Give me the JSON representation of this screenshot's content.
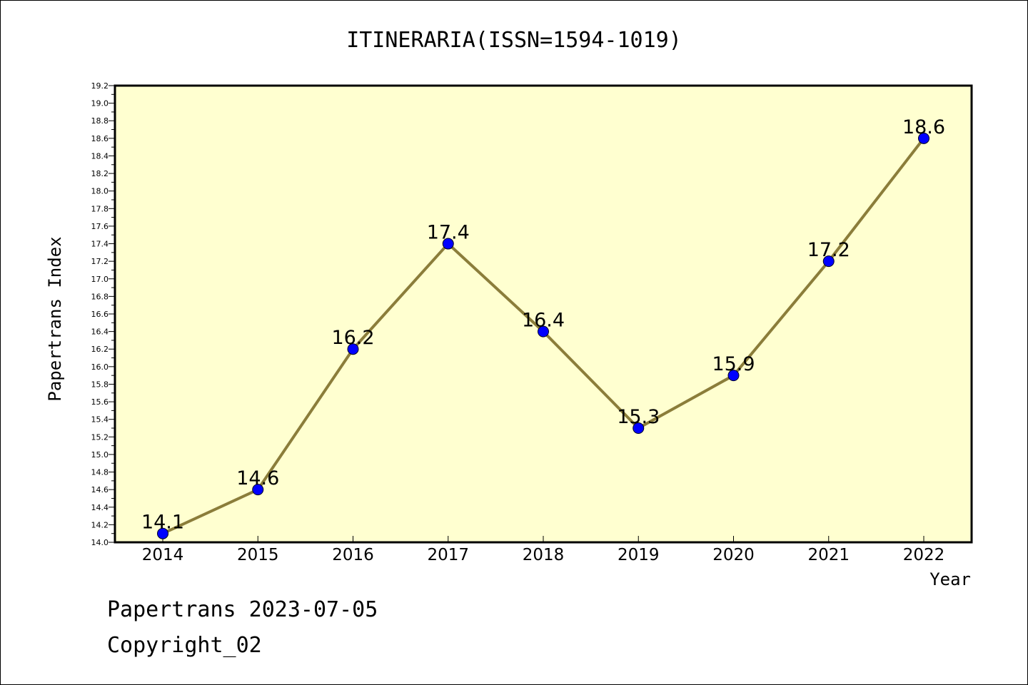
{
  "chart_data": {
    "type": "line",
    "title": "ITINERARIA(ISSN=1594-1019)",
    "xlabel": "Year",
    "ylabel": "Papertrans Index",
    "categories": [
      "2014",
      "2015",
      "2016",
      "2017",
      "2018",
      "2019",
      "2020",
      "2021",
      "2022"
    ],
    "series": [
      {
        "name": "Papertrans Index",
        "values": [
          14.1,
          14.6,
          16.2,
          17.4,
          16.4,
          15.3,
          15.9,
          17.2,
          18.6
        ]
      }
    ],
    "data_labels": [
      "14.1",
      "14.6",
      "16.2",
      "17.4",
      "16.4",
      "15.3",
      "15.9",
      "17.2",
      "18.6"
    ],
    "ylim": [
      14.0,
      19.2
    ],
    "yticks": [
      "14.0",
      "14.2",
      "14.4",
      "14.6",
      "14.8",
      "15.0",
      "15.2",
      "15.4",
      "15.6",
      "15.8",
      "16.0",
      "16.2",
      "16.4",
      "16.6",
      "16.8",
      "17.0",
      "17.2",
      "17.4",
      "17.6",
      "17.8",
      "18.0",
      "18.2",
      "18.4",
      "18.6",
      "18.8",
      "19.0",
      "19.2"
    ],
    "grid": false,
    "colors": {
      "plot_background": "#ffffd0",
      "line": "#8b7d3a",
      "marker": "#0000ff"
    }
  },
  "footer": {
    "line1": "Papertrans 2023-07-05",
    "line2": "Copyright_02"
  }
}
